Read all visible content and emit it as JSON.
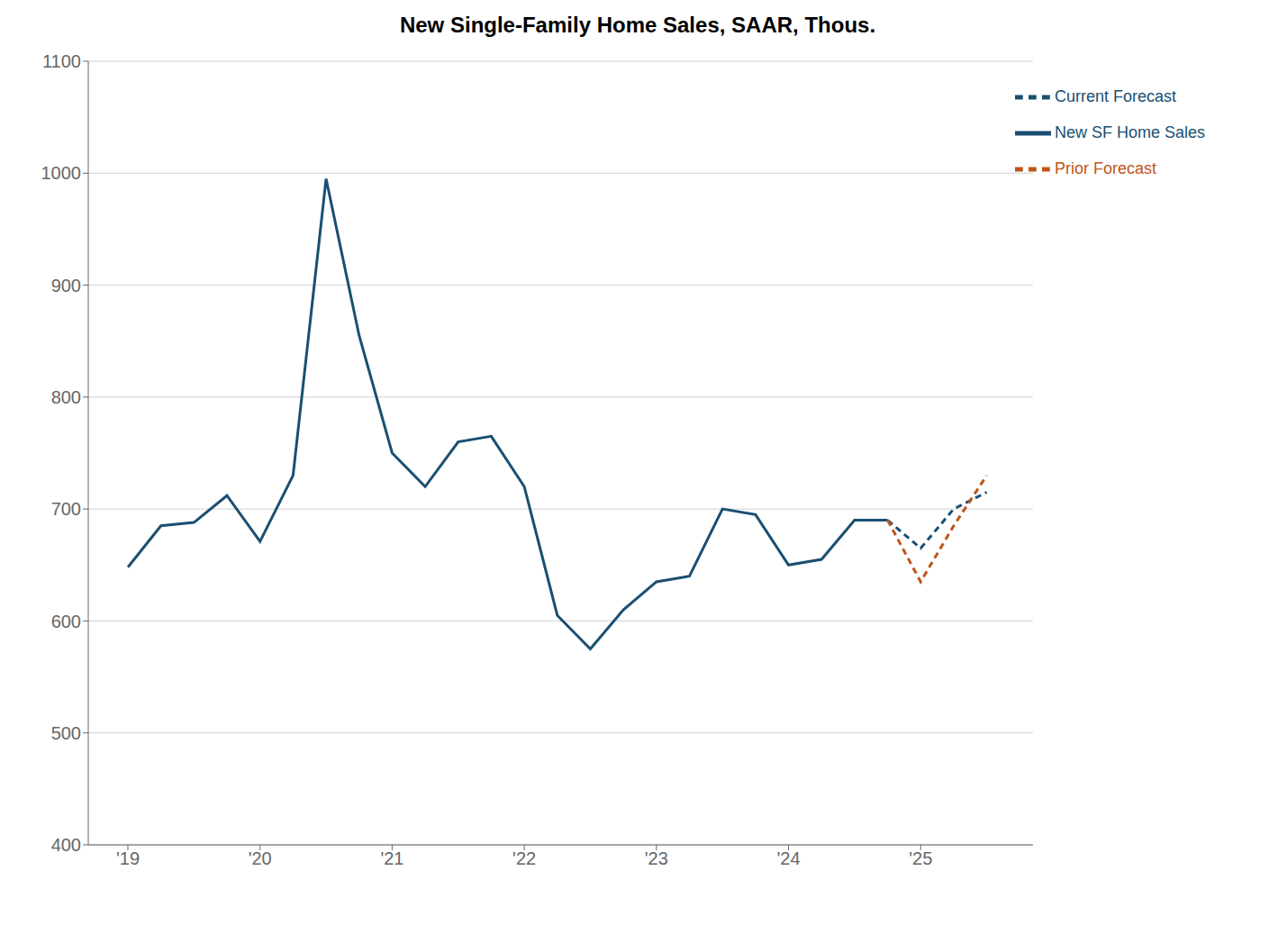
{
  "chart_data": {
    "type": "line",
    "title": "New Single-Family Home Sales, SAAR, Thous.",
    "xlim": [
      2018.7,
      2025.85
    ],
    "xticks": [
      {
        "value": 2019,
        "label": "'19"
      },
      {
        "value": 2020,
        "label": "'20"
      },
      {
        "value": 2021,
        "label": "'21"
      },
      {
        "value": 2022,
        "label": "'22"
      },
      {
        "value": 2023,
        "label": "'23"
      },
      {
        "value": 2024,
        "label": "'24"
      },
      {
        "value": 2025,
        "label": "'25"
      }
    ],
    "ylim": [
      400,
      1100
    ],
    "yticks": [
      400,
      500,
      600,
      700,
      800,
      900,
      1000,
      1100
    ],
    "grid": "y",
    "legend": "upper right",
    "series": [
      {
        "name": "New SF Home Sales",
        "color": "#1a4f72",
        "line_style": "solid",
        "x": [
          2019.0,
          2019.25,
          2019.5,
          2019.75,
          2020.0,
          2020.25,
          2020.5,
          2020.75,
          2021.0,
          2021.25,
          2021.5,
          2021.75,
          2022.0,
          2022.25,
          2022.5,
          2022.75,
          2023.0,
          2023.25,
          2023.5,
          2023.75,
          2024.0,
          2024.25,
          2024.5,
          2024.75
        ],
        "values": [
          648,
          685,
          688,
          712,
          671,
          730,
          995,
          855,
          750,
          720,
          760,
          765,
          720,
          605,
          575,
          610,
          635,
          640,
          700,
          695,
          650,
          655,
          690,
          690
        ]
      },
      {
        "name": "Current Forecast",
        "color": "#1a4f72",
        "line_style": "dashed",
        "x": [
          2024.75,
          2025.0,
          2025.25,
          2025.5
        ],
        "values": [
          690,
          665,
          700,
          715
        ]
      },
      {
        "name": "Prior Forecast",
        "color": "#bf5517",
        "line_style": "dashed",
        "x": [
          2024.75,
          2025.0,
          2025.25,
          2025.5
        ],
        "values": [
          690,
          635,
          685,
          730
        ]
      }
    ]
  }
}
